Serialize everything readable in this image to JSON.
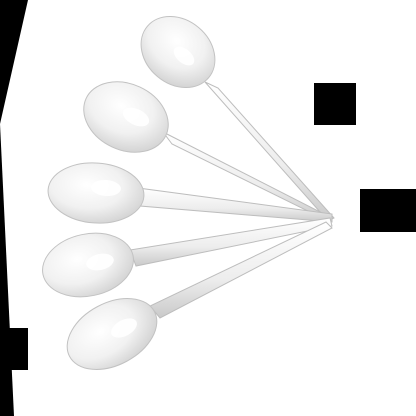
{
  "scene": {
    "subject": "plastic-spoons",
    "spoon_count": 5,
    "colors": {
      "background": "#000000",
      "photo": "#ffffff",
      "spoon_fill": "#f4f4f4",
      "spoon_shadow": "#cfcfcf",
      "spoon_edge": "#b8b8b8",
      "occluder": "#000000"
    },
    "spoons": [
      {
        "id": "spoon-1"
      },
      {
        "id": "spoon-2"
      },
      {
        "id": "spoon-3"
      },
      {
        "id": "spoon-4"
      },
      {
        "id": "spoon-5"
      }
    ]
  }
}
